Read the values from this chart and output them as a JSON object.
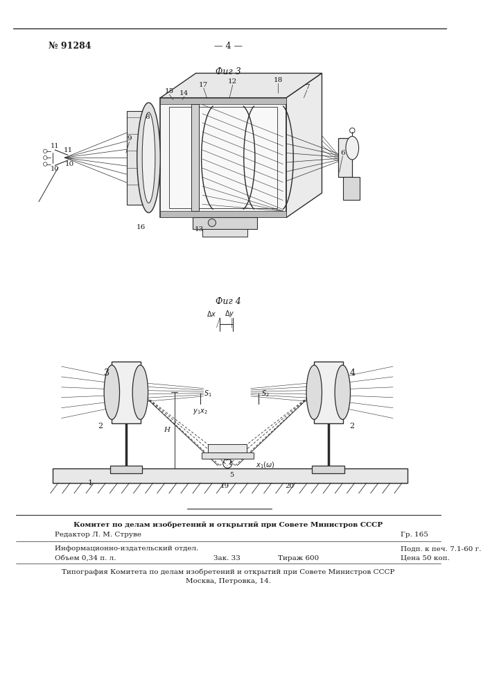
{
  "bg_color": "#ffffff",
  "page_width": 7.07,
  "page_height": 10.0,
  "header_left": "№ 91284",
  "header_center": "— 4 —",
  "fig3_label": "Фиг 3",
  "fig4_label": "Фиг 4",
  "footer_line1": "Комитет по делам изобретений и открытий при Совете Министров СССР",
  "footer_gr": "Гр. 165",
  "footer_editor": "Редактор Л. М. Струве",
  "footer_line3": "Информационно-издательский отдел.",
  "footer_line4": "Объем 0,34 п. л.",
  "footer_zak": "Зак. 33",
  "footer_tirazh": "Тираж 600",
  "footer_podp": "Подп. к печ. 7.1-60 г.",
  "footer_cena": "Цена 50 коп.",
  "footer_tipograf1": "Типография Комитета по делам изобретений и открытий при Совете Министров СССР",
  "footer_tipograf2": "Москва, Петровка, 14.",
  "text_color": "#1a1a1a",
  "line_color": "#2a2a2a"
}
